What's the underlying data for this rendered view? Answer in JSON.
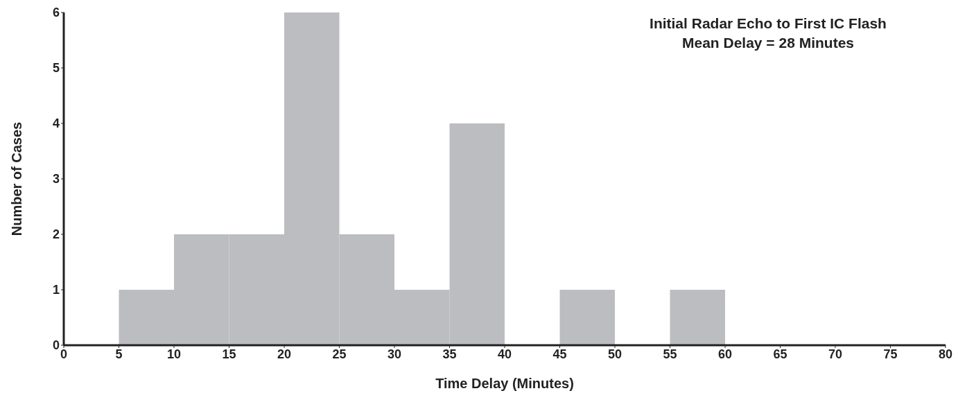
{
  "chart_data": {
    "type": "histogram",
    "title": "Initial Radar Echo to First IC Flash",
    "subtitle": "Mean Delay = 28 Minutes",
    "xlabel": "Time Delay (Minutes)",
    "ylabel": "Number of Cases",
    "bins": [
      5,
      10,
      15,
      20,
      25,
      30,
      35,
      40,
      45,
      50,
      55,
      60
    ],
    "values": [
      1,
      2,
      2,
      6,
      2,
      1,
      4,
      0,
      1,
      0,
      1
    ],
    "color": "#bcbdc0",
    "xlim": [
      0,
      80
    ],
    "xticks": [
      0,
      5,
      10,
      15,
      20,
      25,
      30,
      35,
      40,
      45,
      50,
      55,
      60,
      65,
      70,
      75,
      80
    ],
    "ylim": [
      0,
      6
    ],
    "yticks": [
      0,
      1,
      2,
      3,
      4,
      5,
      6
    ],
    "grid": false,
    "legend": false
  }
}
